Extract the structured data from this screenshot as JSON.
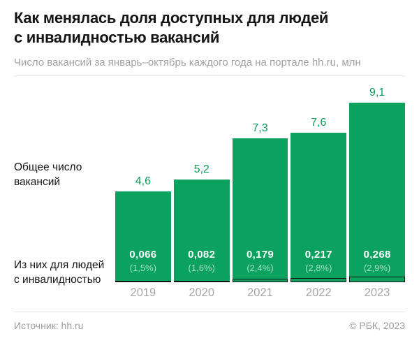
{
  "header": {
    "title": "Как менялась доля доступных для людей\nс инвалидностью вакансий",
    "subtitle": "Число вакансий за январь–октябрь каждого года на портале hh.ru, млн"
  },
  "labels": {
    "total": "Общее число\nвакансий",
    "disabled": "Из них для людей\nс инвалидностью"
  },
  "chart_data": {
    "type": "bar",
    "title": "Как менялась доля доступных для людей с инвалидностью вакансий",
    "subtitle": "Число вакансий за январь–октябрь каждого года на портале hh.ru, млн",
    "unit": "млн",
    "categories": [
      "2019",
      "2020",
      "2021",
      "2022",
      "2023"
    ],
    "series": [
      {
        "name": "Общее число вакансий",
        "values": [
          4.6,
          5.2,
          7.3,
          7.6,
          9.1
        ],
        "display": [
          "4,6",
          "5,2",
          "7,3",
          "7,6",
          "9,1"
        ]
      },
      {
        "name": "Из них для людей с инвалидностью",
        "values": [
          0.066,
          0.082,
          0.179,
          0.217,
          0.268
        ],
        "display": [
          "0,066",
          "0,082",
          "0,179",
          "0,217",
          "0,268"
        ],
        "percent": [
          "(1,5%)",
          "(1,6%)",
          "(2,4%)",
          "(2,8%)",
          "(2,9%)"
        ]
      }
    ],
    "ylim": [
      0,
      9.6
    ],
    "grid": false,
    "legend_position": "left-row-annotations",
    "colors": {
      "bar": "#0aa25e",
      "value_label": "#0a9c59",
      "inner_value_text": "#ffffff",
      "disabled_box_border": "#121212",
      "text_dark": "#141414",
      "text_gray": "#a2a2a2"
    }
  },
  "footer": {
    "source": "Источник: hh.ru",
    "copyright": "© РБК, 2023"
  }
}
